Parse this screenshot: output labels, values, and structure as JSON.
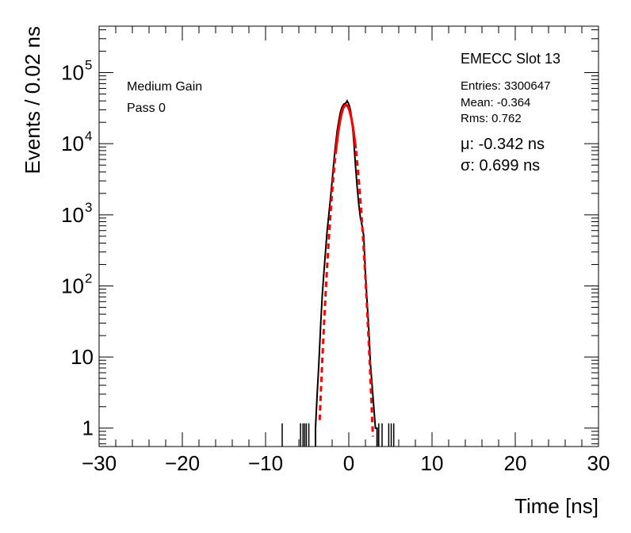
{
  "chart_data": {
    "type": "line",
    "title": "",
    "xlabel": "Time [ns]",
    "ylabel": "Events / 0.02 ns",
    "xlim": [
      -30,
      30
    ],
    "ylim": [
      0.55,
      450000
    ],
    "yscale": "log",
    "grid": false,
    "x_ticks": [
      -30,
      -20,
      -10,
      0,
      10,
      20,
      30
    ],
    "x_tick_labels": [
      "−30",
      "−20",
      "−10",
      "0",
      "10",
      "20",
      "30"
    ],
    "y_ticks": [
      {
        "value": 1,
        "base": "1",
        "exp": ""
      },
      {
        "value": 10,
        "base": "10",
        "exp": ""
      },
      {
        "value": 100,
        "base": "10",
        "exp": "2"
      },
      {
        "value": 1000,
        "base": "10",
        "exp": "3"
      },
      {
        "value": 10000,
        "base": "10",
        "exp": "4"
      },
      {
        "value": 100000,
        "base": "10",
        "exp": "5"
      }
    ],
    "annotations": {
      "left": [
        "Medium Gain",
        "Pass 0"
      ],
      "slot": "EMECC Slot 13",
      "stats": [
        "Entries: 3300647",
        "Mean: -0.364",
        "Rms: 0.762"
      ],
      "fit": [
        "μ: -0.342 ns",
        "σ: 0.699 ns"
      ]
    },
    "series": [
      {
        "kind": "histogram",
        "color": "#000000",
        "x": [
          -4.0,
          -3.8,
          -3.6,
          -3.4,
          -3.2,
          -3.0,
          -2.8,
          -2.6,
          -2.4,
          -2.2,
          -2.0,
          -1.8,
          -1.6,
          -1.4,
          -1.2,
          -1.0,
          -0.8,
          -0.6,
          -0.4,
          -0.3,
          -0.2,
          -0.1,
          0.0,
          0.2,
          0.4,
          0.6,
          0.8,
          1.0,
          1.2,
          1.4,
          1.6,
          1.8,
          2.0,
          2.2,
          2.4,
          2.6,
          2.8,
          3.0,
          3.2,
          3.4
        ],
        "values": [
          1,
          3,
          8,
          25,
          70,
          150,
          300,
          600,
          1000,
          1700,
          3000,
          5500,
          9500,
          15000,
          21000,
          28000,
          33000,
          36000,
          37000,
          38000,
          40000,
          38000,
          36000,
          30000,
          20000,
          11000,
          5000,
          2500,
          1400,
          900,
          700,
          500,
          150,
          60,
          25,
          8,
          4,
          2,
          1,
          1
        ],
        "outliers_x": [
          -8.0,
          -5.8,
          -5.5,
          -5.3,
          -5.1,
          -4.8,
          3.6,
          4.0,
          4.8,
          5.1,
          5.4
        ]
      },
      {
        "kind": "gaussian-fit",
        "color": "#ff0000",
        "mu": -0.342,
        "sigma": 0.699,
        "amplitude": 35000,
        "x_range": [
          -3.5,
          2.9
        ]
      }
    ]
  }
}
